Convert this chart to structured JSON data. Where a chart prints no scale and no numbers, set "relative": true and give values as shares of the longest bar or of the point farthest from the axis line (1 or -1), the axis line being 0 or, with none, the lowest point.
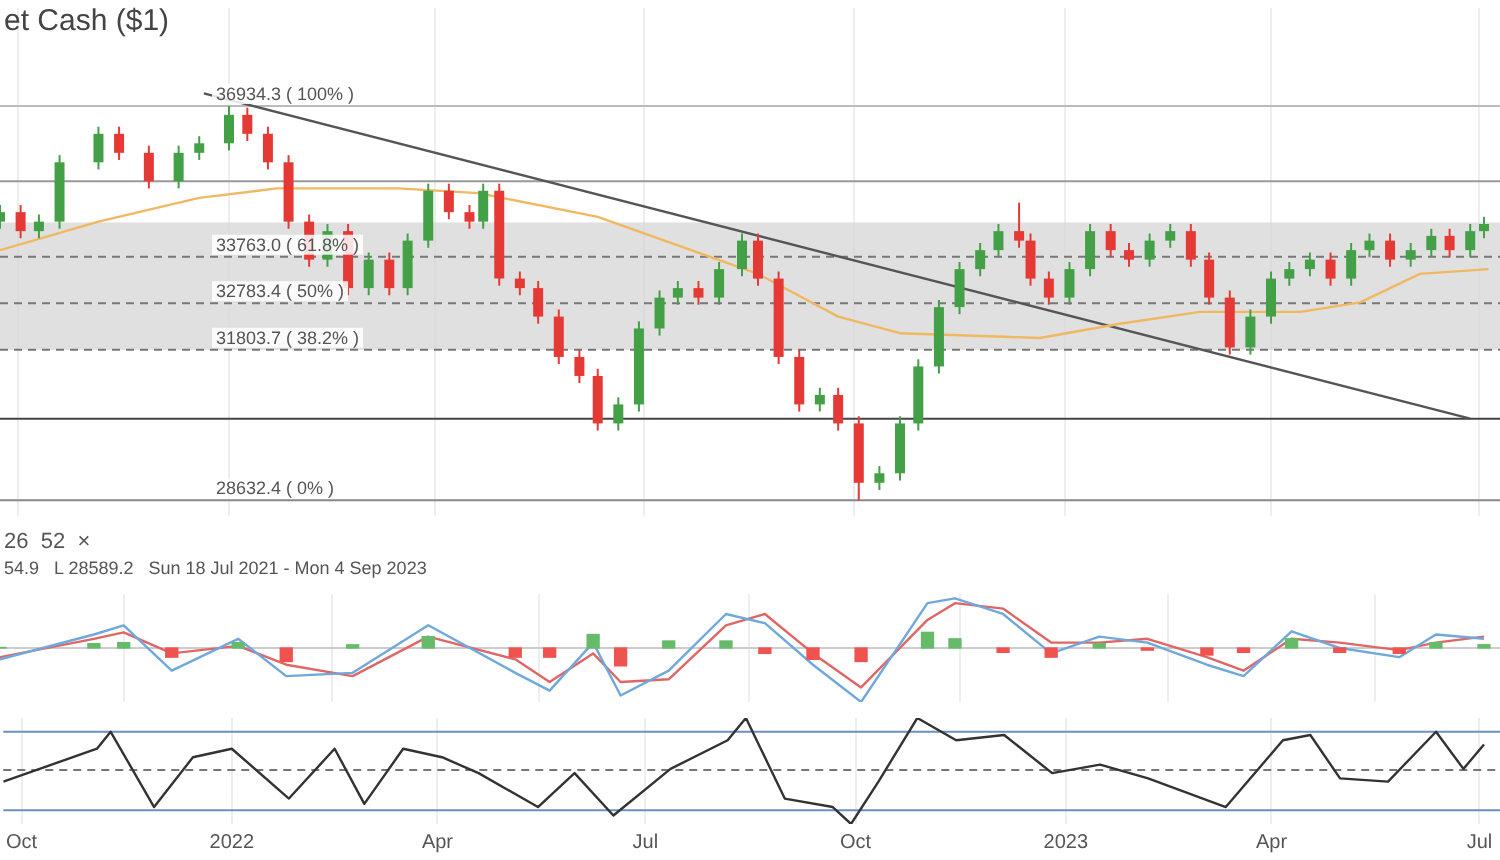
{
  "chart_data": [
    {
      "type": "candlestick",
      "title": "et Cash ($1)",
      "x": [
        "2021-09-23",
        "2021-10-02",
        "2021-10-10",
        "2021-10-19",
        "2021-11-05",
        "2021-11-14",
        "2021-11-27",
        "2021-12-10",
        "2021-12-19",
        "2022-01-01",
        "2022-01-09",
        "2022-01-18",
        "2022-01-27",
        "2022-02-05",
        "2022-02-13",
        "2022-02-22",
        "2022-03-03",
        "2022-03-12",
        "2022-03-20",
        "2022-03-29",
        "2022-04-07",
        "2022-04-16",
        "2022-04-22",
        "2022-04-29",
        "2022-05-08",
        "2022-05-16",
        "2022-05-25",
        "2022-06-03",
        "2022-06-11",
        "2022-06-20",
        "2022-06-29",
        "2022-07-08",
        "2022-07-16",
        "2022-07-25",
        "2022-08-03",
        "2022-08-13",
        "2022-08-20",
        "2022-08-29",
        "2022-09-07",
        "2022-09-16",
        "2022-09-24",
        "2022-10-03",
        "2022-10-12",
        "2022-10-21",
        "2022-10-29",
        "2022-11-07",
        "2022-11-16",
        "2022-11-25",
        "2022-12-03",
        "2022-12-12",
        "2022-12-17",
        "2022-12-25",
        "2023-01-03",
        "2023-01-12",
        "2023-01-21",
        "2023-01-29",
        "2023-02-07",
        "2023-02-16",
        "2023-02-25",
        "2023-03-05",
        "2023-03-14",
        "2023-03-23",
        "2023-04-01",
        "2023-04-09",
        "2023-04-18",
        "2023-04-27",
        "2023-05-06",
        "2023-05-14",
        "2023-05-23",
        "2023-06-01",
        "2023-06-10",
        "2023-06-18",
        "2023-06-27",
        "2023-07-03"
      ],
      "ohlc": [
        [
          34500,
          34850,
          34350,
          34700
        ],
        [
          34700,
          34850,
          34150,
          34300
        ],
        [
          34300,
          34650,
          34150,
          34500
        ],
        [
          34500,
          35900,
          34350,
          35750
        ],
        [
          35750,
          36500,
          35600,
          36350
        ],
        [
          36350,
          36500,
          35800,
          35950
        ],
        [
          35950,
          36100,
          35200,
          35350
        ],
        [
          35350,
          36100,
          35200,
          35950
        ],
        [
          35950,
          36300,
          35800,
          36150
        ],
        [
          36150,
          36934.3,
          36000,
          36750
        ],
        [
          36750,
          36900,
          36200,
          36350
        ],
        [
          36350,
          36500,
          35600,
          35750
        ],
        [
          35750,
          35900,
          34350,
          34500
        ],
        [
          34500,
          34650,
          33550,
          33700
        ],
        [
          33700,
          34450,
          33550,
          34300
        ],
        [
          34300,
          34450,
          32950,
          33100
        ],
        [
          33100,
          33850,
          32950,
          33700
        ],
        [
          33700,
          33850,
          32950,
          33100
        ],
        [
          33100,
          34250,
          32950,
          34100
        ],
        [
          34100,
          35300,
          33950,
          35150
        ],
        [
          35150,
          35300,
          34550,
          34700
        ],
        [
          34700,
          34850,
          34350,
          34500
        ],
        [
          34500,
          35300,
          34350,
          35150
        ],
        [
          35150,
          35300,
          33150,
          33300
        ],
        [
          33300,
          33450,
          32950,
          33100
        ],
        [
          33100,
          33250,
          32350,
          32500
        ],
        [
          32500,
          32650,
          31500,
          31650
        ],
        [
          31650,
          31800,
          31100,
          31250
        ],
        [
          31250,
          31400,
          30100,
          30250
        ],
        [
          30250,
          30800,
          30100,
          30650
        ],
        [
          30650,
          32400,
          30500,
          32250
        ],
        [
          32250,
          33050,
          32100,
          32900
        ],
        [
          32900,
          33250,
          32750,
          33100
        ],
        [
          33100,
          33250,
          32750,
          32900
        ],
        [
          32900,
          33650,
          32750,
          33500
        ],
        [
          33500,
          34250,
          33350,
          34100
        ],
        [
          34100,
          34250,
          33150,
          33300
        ],
        [
          33300,
          33450,
          31500,
          31650
        ],
        [
          31650,
          31800,
          30500,
          30650
        ],
        [
          30650,
          31000,
          30500,
          30850
        ],
        [
          30850,
          31000,
          30100,
          30250
        ],
        [
          30250,
          30400,
          28632.4,
          29000
        ],
        [
          29000,
          29350,
          28850,
          29200
        ],
        [
          29200,
          30400,
          29050,
          30250
        ],
        [
          30250,
          31600,
          30100,
          31450
        ],
        [
          31450,
          32850,
          31300,
          32700
        ],
        [
          32700,
          33650,
          32550,
          33500
        ],
        [
          33500,
          34050,
          33350,
          33900
        ],
        [
          33900,
          34450,
          33750,
          34300
        ],
        [
          34300,
          34900,
          33950,
          34100
        ],
        [
          34100,
          34250,
          33150,
          33300
        ],
        [
          33300,
          33450,
          32750,
          32900
        ],
        [
          32900,
          33650,
          32750,
          33500
        ],
        [
          33500,
          34450,
          33350,
          34300
        ],
        [
          34300,
          34450,
          33750,
          33900
        ],
        [
          33900,
          34050,
          33550,
          33700
        ],
        [
          33700,
          34250,
          33550,
          34100
        ],
        [
          34100,
          34450,
          33950,
          34300
        ],
        [
          34300,
          34450,
          33550,
          33700
        ],
        [
          33700,
          33850,
          32750,
          32900
        ],
        [
          32900,
          33050,
          31700,
          31850
        ],
        [
          31850,
          32650,
          31700,
          32500
        ],
        [
          32500,
          33450,
          32350,
          33300
        ],
        [
          33300,
          33650,
          33150,
          33500
        ],
        [
          33500,
          33850,
          33350,
          33700
        ],
        [
          33700,
          33850,
          33150,
          33300
        ],
        [
          33300,
          34050,
          33150,
          33900
        ],
        [
          33900,
          34250,
          33750,
          34100
        ],
        [
          34100,
          34250,
          33550,
          33700
        ],
        [
          33700,
          34050,
          33550,
          33900
        ],
        [
          33900,
          34350,
          33750,
          34200
        ],
        [
          34200,
          34350,
          33750,
          33900
        ],
        [
          33900,
          34450,
          33750,
          34300
        ],
        [
          34300,
          34600,
          34150,
          34450
        ]
      ],
      "colors": [
        "#43a047",
        "#e53935",
        "#43a047",
        "#43a047",
        "#43a047",
        "#e53935",
        "#e53935",
        "#43a047",
        "#43a047",
        "#43a047",
        "#e53935",
        "#e53935",
        "#e53935",
        "#e53935",
        "#43a047",
        "#e53935",
        "#43a047",
        "#e53935",
        "#43a047",
        "#43a047",
        "#e53935",
        "#e53935",
        "#43a047",
        "#e53935",
        "#e53935",
        "#e53935",
        "#e53935",
        "#e53935",
        "#e53935",
        "#43a047",
        "#43a047",
        "#43a047",
        "#43a047",
        "#e53935",
        "#43a047",
        "#43a047",
        "#e53935",
        "#e53935",
        "#e53935",
        "#43a047",
        "#e53935",
        "#e53935",
        "#43a047",
        "#43a047",
        "#43a047",
        "#43a047",
        "#43a047",
        "#43a047",
        "#43a047",
        "#e53935",
        "#e53935",
        "#e53935",
        "#43a047",
        "#43a047",
        "#e53935",
        "#e53935",
        "#43a047",
        "#43a047",
        "#e53935",
        "#e53935",
        "#e53935",
        "#43a047",
        "#43a047",
        "#43a047",
        "#43a047",
        "#e53935",
        "#43a047",
        "#43a047",
        "#e53935",
        "#43a047",
        "#43a047",
        "#e53935",
        "#43a047",
        "#43a047"
      ],
      "series": [
        {
          "type": "line",
          "color": "#f0b860",
          "x": [
            "2021-09-23",
            "2021-11-05",
            "2021-12-19",
            "2022-01-22",
            "2022-03-16",
            "2022-04-20",
            "2022-06-11",
            "2022-08-20",
            "2022-09-24",
            "2022-10-21",
            "2022-12-21",
            "2023-01-25",
            "2023-03-01",
            "2023-04-14",
            "2023-05-10",
            "2023-06-05",
            "2023-07-05"
          ],
          "values": [
            33900,
            34500,
            35000,
            35200,
            35200,
            35100,
            34600,
            33400,
            32500,
            32150,
            32050,
            32350,
            32600,
            32600,
            32800,
            33400,
            33500
          ]
        },
        {
          "type": "line",
          "color": "#555555",
          "x": [
            "2021-12-21",
            "2023-06-27"
          ],
          "values": [
            37200,
            30350
          ]
        }
      ],
      "ref_lines": [
        {
          "axis": "y",
          "value": 36934.3,
          "label": "36934.3 ( 100% )",
          "color": "#bbbbbb",
          "line_style": "solid"
        },
        {
          "axis": "y",
          "value": 35350,
          "color": "#999999",
          "line_style": "solid"
        },
        {
          "axis": "y",
          "value": 33763.0,
          "label": "33763.0 ( 61.8% )",
          "color": "#777777",
          "line_style": "dashed"
        },
        {
          "axis": "y",
          "value": 32783.4,
          "label": "32783.4 ( 50% )",
          "color": "#777777",
          "line_style": "dashed"
        },
        {
          "axis": "y",
          "value": 31803.7,
          "label": "31803.7 ( 38.2% )",
          "color": "#777777",
          "line_style": "dashed"
        },
        {
          "axis": "y",
          "value": 30350,
          "color": "#444444",
          "line_style": "solid"
        },
        {
          "axis": "y",
          "value": 28632.4,
          "label": "28632.4 ( 0% )",
          "color": "#888888",
          "line_style": "solid"
        }
      ],
      "bands": [
        {
          "axis": "y",
          "from": 31800,
          "to": 34480,
          "color": "#d6d6d6"
        }
      ],
      "xlim": [
        "2021-09-23",
        "2023-07-10"
      ],
      "ylim": [
        28300,
        39000
      ],
      "xticks": [
        {
          "value": "2021-10-01",
          "label": null
        },
        {
          "value": "2022-01-01",
          "label": null
        },
        {
          "value": "2022-04-01",
          "label": null
        },
        {
          "value": "2022-07-01",
          "label": null
        },
        {
          "value": "2022-10-01",
          "label": null
        },
        {
          "value": "2023-01-01",
          "label": null
        },
        {
          "value": "2023-04-01",
          "label": null
        },
        {
          "value": "2023-07-01",
          "label": null
        }
      ],
      "grid": "x",
      "tick_labels": false
    },
    {
      "type": "line",
      "relative": true,
      "ref_lines": [
        {
          "axis": "y",
          "value": 0,
          "color": "#cccccc",
          "line_style": "solid"
        }
      ],
      "annotations": [
        "26  52  ×",
        "54.9   L 28589.2   Sun 18 Jul 2021 - Mon 4 Sep 2023"
      ],
      "x": [
        "2021-09-23",
        "2021-11-03",
        "2021-11-16",
        "2021-12-07",
        "2022-01-05",
        "2022-01-26",
        "2022-02-24",
        "2022-03-29",
        "2022-05-06",
        "2022-05-21",
        "2022-06-09",
        "2022-06-21",
        "2022-07-12",
        "2022-08-06",
        "2022-08-23",
        "2022-09-13",
        "2022-10-04",
        "2022-11-02",
        "2022-11-14",
        "2022-12-05",
        "2022-12-26",
        "2023-01-16",
        "2023-02-06",
        "2023-03-04",
        "2023-03-20",
        "2023-04-10",
        "2023-05-01",
        "2023-05-27",
        "2023-06-12",
        "2023-07-03"
      ],
      "series": [
        {
          "type": "bar",
          "colors": [
            "#66bb6a",
            "#66bb6a",
            "#66bb6a",
            "#ef5350",
            "#66bb6a",
            "#ef5350",
            "#66bb6a",
            "#66bb6a",
            "#ef5350",
            "#ef5350",
            "#66bb6a",
            "#ef5350",
            "#66bb6a",
            "#66bb6a",
            "#ef5350",
            "#ef5350",
            "#ef5350",
            "#66bb6a",
            "#66bb6a",
            "#ef5350",
            "#ef5350",
            "#66bb6a",
            "#ef5350",
            "#ef5350",
            "#ef5350",
            "#66bb6a",
            "#ef5350",
            "#ef5350",
            "#66bb6a",
            "#66bb6a"
          ],
          "values": [
            0.01,
            0.08,
            0.1,
            -0.17,
            0.1,
            -0.25,
            0.06,
            0.21,
            -0.17,
            -0.17,
            0.25,
            -0.33,
            0.13,
            0.13,
            -0.1,
            -0.21,
            -0.25,
            0.29,
            0.17,
            -0.08,
            -0.17,
            0.08,
            -0.04,
            -0.13,
            -0.08,
            0.17,
            -0.08,
            -0.1,
            0.1,
            0.06
          ]
        },
        {
          "color": "#6fa8dc",
          "values": [
            -0.21,
            0.25,
            0.42,
            -0.42,
            0.17,
            -0.52,
            -0.46,
            0.42,
            -0.46,
            -0.79,
            0.1,
            -0.88,
            -0.42,
            0.63,
            0.46,
            -0.31,
            -1,
            0.83,
            0.92,
            0.63,
            -0.1,
            0.21,
            0.1,
            -0.31,
            -0.52,
            0.31,
            0,
            -0.17,
            0.25,
            0.17
          ]
        },
        {
          "color": "#e06666",
          "values": [
            -0.17,
            0.17,
            0.29,
            -0.1,
            0.04,
            -0.31,
            -0.52,
            0.21,
            -0.21,
            -0.63,
            -0.1,
            -0.63,
            -0.58,
            0.42,
            0.63,
            -0.1,
            -0.73,
            0.52,
            0.83,
            0.73,
            0.1,
            0.1,
            0.17,
            -0.17,
            -0.42,
            0.17,
            0.1,
            -0.04,
            0.1,
            0.21
          ]
        }
      ],
      "xlim": [
        "2021-09-23",
        "2023-07-10"
      ],
      "xticks": [
        {
          "value": "2021-10-01",
          "label": null
        },
        {
          "value": "2022-01-01",
          "label": null
        },
        {
          "value": "2022-04-01",
          "label": null
        },
        {
          "value": "2022-07-01",
          "label": null
        },
        {
          "value": "2022-10-01",
          "label": null
        },
        {
          "value": "2023-01-01",
          "label": null
        },
        {
          "value": "2023-04-01",
          "label": null
        },
        {
          "value": "2023-07-01",
          "label": null
        }
      ],
      "grid": "x",
      "tick_labels": false
    },
    {
      "type": "line",
      "relative": true,
      "x": [
        "2021-09-23",
        "2021-11-03",
        "2021-11-09",
        "2021-11-28",
        "2021-12-15",
        "2022-01-01",
        "2022-01-26",
        "2022-02-15",
        "2022-02-28",
        "2022-03-17",
        "2022-04-03",
        "2022-04-19",
        "2022-05-15",
        "2022-05-31",
        "2022-06-17",
        "2022-07-12",
        "2022-08-06",
        "2022-08-14",
        "2022-08-31",
        "2022-09-21",
        "2022-09-29",
        "2022-10-11",
        "2022-10-28",
        "2022-11-14",
        "2022-12-05",
        "2022-12-26",
        "2023-01-16",
        "2023-02-06",
        "2023-03-12",
        "2023-04-06",
        "2023-04-18",
        "2023-05-01",
        "2023-05-22",
        "2023-06-12",
        "2023-06-24",
        "2023-07-03"
      ],
      "series": [
        {
          "color": "#333333",
          "values": [
            0.4,
            0.71,
            0.87,
            0.16,
            0.63,
            0.71,
            0.24,
            0.71,
            0.19,
            0.71,
            0.63,
            0.48,
            0.16,
            0.48,
            0.08,
            0.52,
            0.79,
            1,
            0.24,
            0.16,
            0,
            0.4,
            1,
            0.79,
            0.84,
            0.48,
            0.56,
            0.43,
            0.16,
            0.79,
            0.84,
            0.43,
            0.4,
            0.87,
            0.52,
            0.75
          ]
        }
      ],
      "ref_lines": [
        {
          "axis": "y",
          "value": 0.87,
          "color": "#6a8fc0",
          "line_style": "solid"
        },
        {
          "axis": "y",
          "value": 0.51,
          "color": "#777777",
          "line_style": "dashed"
        },
        {
          "axis": "y",
          "value": 0.13,
          "color": "#6a8fc0",
          "line_style": "solid"
        }
      ],
      "xlim": [
        "2021-09-23",
        "2023-07-10"
      ],
      "xticks": [
        {
          "value": "2021-10-01",
          "label": "Oct"
        },
        {
          "value": "2022-01-01",
          "label": "2022"
        },
        {
          "value": "2022-04-01",
          "label": "Apr"
        },
        {
          "value": "2022-07-01",
          "label": "Jul"
        },
        {
          "value": "2022-10-01",
          "label": "Oct"
        },
        {
          "value": "2023-01-01",
          "label": "2023"
        },
        {
          "value": "2023-04-01",
          "label": "Apr"
        },
        {
          "value": "2023-07-01",
          "label": "Jul"
        }
      ],
      "grid": "x",
      "tick_labels": "x"
    }
  ]
}
